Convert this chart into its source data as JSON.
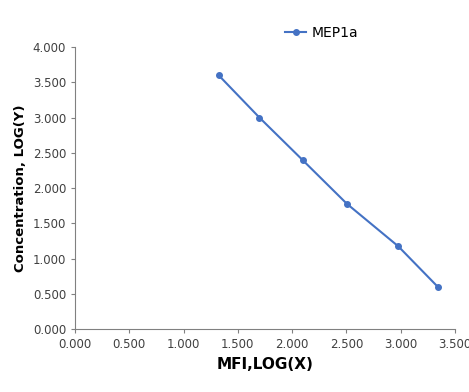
{
  "x": [
    1.322,
    1.699,
    2.097,
    2.505,
    2.978,
    3.342
  ],
  "y": [
    3.602,
    3.0,
    2.398,
    1.778,
    1.176,
    0.602
  ],
  "line_color": "#4472C4",
  "marker": "o",
  "marker_size": 4,
  "linewidth": 1.5,
  "label": "MEP1a",
  "xlabel": "MFI,LOG(X)",
  "ylabel": "Concentration, LOG(Y)",
  "xlim": [
    0.0,
    3.5
  ],
  "ylim": [
    0.0,
    4.0
  ],
  "xticks": [
    0.0,
    0.5,
    1.0,
    1.5,
    2.0,
    2.5,
    3.0,
    3.5
  ],
  "yticks": [
    0.0,
    0.5,
    1.0,
    1.5,
    2.0,
    2.5,
    3.0,
    3.5,
    4.0
  ],
  "xlabel_fontsize": 11,
  "ylabel_fontsize": 9.5,
  "legend_fontsize": 10,
  "tick_fontsize": 8.5,
  "tick_color": "#404040",
  "spine_color": "#808080",
  "background_color": "#ffffff"
}
